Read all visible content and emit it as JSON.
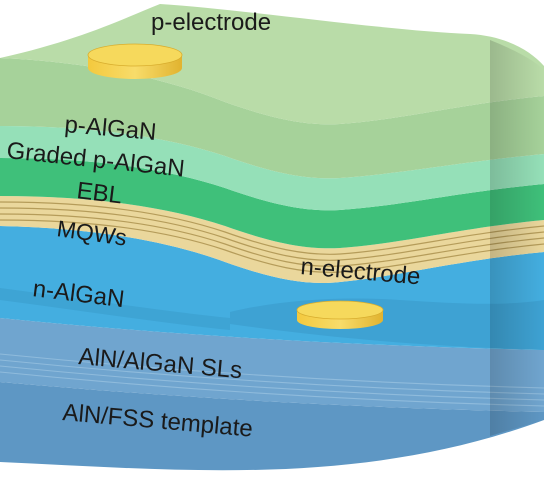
{
  "labels": {
    "p_electrode": "p-electrode",
    "p_algan": "p-AlGaN",
    "graded_p_algan": "Graded p-AlGaN",
    "ebl": "EBL",
    "mqws": "MQWs",
    "n_algan": "n-AlGaN",
    "n_electrode": "n-electrode",
    "sls": "AlN/AlGaN SLs",
    "template": "AlN/FSS template"
  },
  "colors": {
    "template": "#5e97c4",
    "sls": "#70a5cf",
    "n_algan": "#44aee0",
    "mqw": "#ead79c",
    "mqw_line": "#b59c5a",
    "ebl": "#3fc07a",
    "graded": "#95e0b8",
    "p_algan": "#a6d29a",
    "electrode": "#f2cb45"
  }
}
